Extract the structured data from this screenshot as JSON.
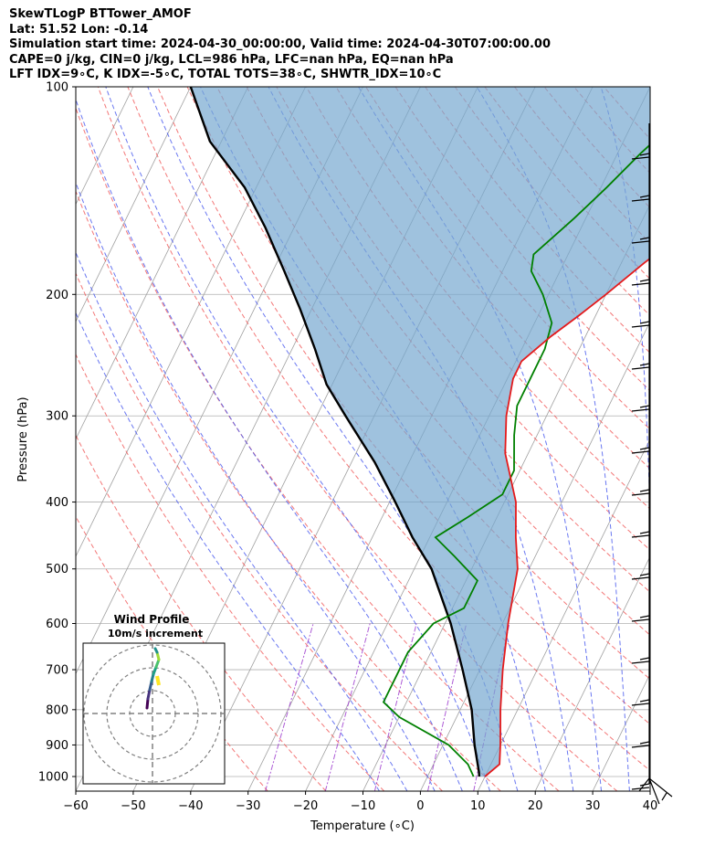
{
  "header": {
    "lines": [
      "SkewTLogP BTTower_AMOF",
      "Lat: 51.52   Lon: -0.14",
      "Simulation start time: 2024-04-30_00:00:00, Valid time: 2024-04-30T07:00:00.00",
      "CAPE=0 j/kg, CIN=0 j/kg, LCL=986 hPa, LFC=nan hPa, EQ=nan hPa",
      "LFT IDX=9∘C, K IDX=-5∘C, TOTAL TOTS=38∘C, SHWTR_IDX=10∘C"
    ]
  },
  "chart_data": {
    "type": "line",
    "subtype": "skew-t log-p",
    "xlabel": "Temperature (∘C)",
    "ylabel": "Pressure (hPa)",
    "xlim": [
      -60,
      40
    ],
    "ylim": [
      1050,
      100
    ],
    "y_scale": "log",
    "x_ticks": [
      -60,
      -50,
      -40,
      -30,
      -20,
      -10,
      0,
      10,
      20,
      30,
      40
    ],
    "y_ticks": [
      100,
      200,
      300,
      400,
      500,
      600,
      700,
      800,
      900,
      1000
    ],
    "grid": true,
    "colors": {
      "temperature": "#e41a1c",
      "dewpoint": "#008000",
      "parcel": "#000000",
      "cape_fill": "#76a8d0",
      "dry_adiabats": "#f05555",
      "moist_adiabats": "#4455ee",
      "mixing_ratio": "#9932cc",
      "isotherms": "#a0a0a0"
    },
    "series": [
      {
        "key": "temperature",
        "points": [
          [
            10,
            1000
          ],
          [
            11.5,
            960
          ],
          [
            10,
            900
          ],
          [
            7,
            800
          ],
          [
            4,
            700
          ],
          [
            1,
            600
          ],
          [
            -2,
            500
          ],
          [
            -5,
            450
          ],
          [
            -8,
            400
          ],
          [
            -14,
            340
          ],
          [
            -17,
            300
          ],
          [
            -19,
            265
          ],
          [
            -19,
            250
          ],
          [
            -16,
            230
          ],
          [
            -13,
            215
          ],
          [
            -10,
            200
          ],
          [
            -6,
            180
          ],
          [
            -1,
            160
          ],
          [
            4,
            145
          ],
          [
            8,
            135
          ],
          [
            12,
            125
          ],
          [
            15,
            115
          ],
          [
            19,
            100
          ]
        ]
      },
      {
        "key": "dewpoint",
        "points": [
          [
            8,
            1000
          ],
          [
            6,
            960
          ],
          [
            1,
            900
          ],
          [
            -10,
            820
          ],
          [
            -14,
            780
          ],
          [
            -14,
            720
          ],
          [
            -14,
            660
          ],
          [
            -12,
            600
          ],
          [
            -8,
            570
          ],
          [
            -8,
            520
          ],
          [
            -14,
            480
          ],
          [
            -19,
            450
          ],
          [
            -15,
            420
          ],
          [
            -11,
            390
          ],
          [
            -11,
            360
          ],
          [
            -14,
            320
          ],
          [
            -16,
            290
          ],
          [
            -16,
            260
          ],
          [
            -16,
            240
          ],
          [
            -17,
            220
          ],
          [
            -21,
            200
          ],
          [
            -25,
            185
          ],
          [
            -26,
            175
          ],
          [
            -22,
            155
          ],
          [
            -19,
            140
          ],
          [
            -16,
            125
          ],
          [
            -12,
            110
          ],
          [
            -9,
            100
          ]
        ]
      },
      {
        "key": "parcel",
        "points": [
          [
            9,
            1000
          ],
          [
            8.6,
            986
          ],
          [
            5.5,
            900
          ],
          [
            2,
            800
          ],
          [
            -3,
            700
          ],
          [
            -9,
            600
          ],
          [
            -17,
            500
          ],
          [
            -23,
            450
          ],
          [
            -29,
            400
          ],
          [
            -36,
            350
          ],
          [
            -45,
            300
          ],
          [
            -51,
            270
          ],
          [
            -56,
            240
          ],
          [
            -62,
            210
          ],
          [
            -68,
            185
          ],
          [
            -75,
            160
          ],
          [
            -82,
            140
          ],
          [
            -92,
            120
          ],
          [
            -100,
            100
          ]
        ]
      }
    ],
    "inset": {
      "title": "Wind Profile",
      "subtitle": "10m/s increment"
    }
  }
}
